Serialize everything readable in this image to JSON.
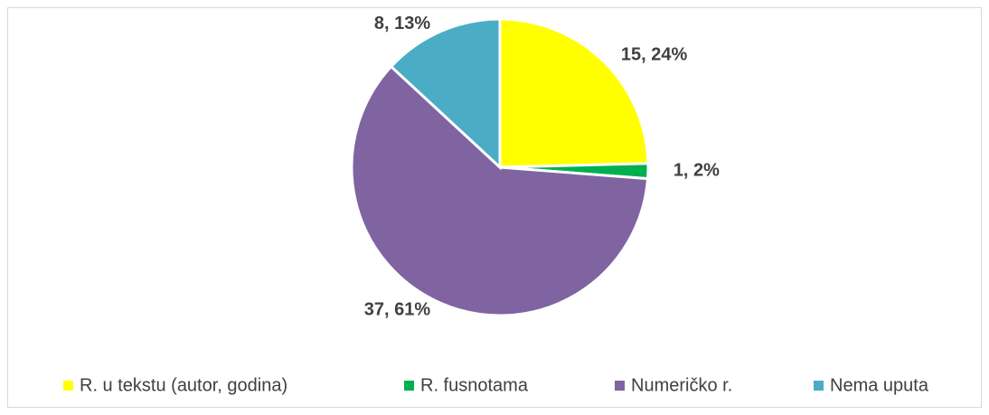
{
  "chart_data": {
    "type": "pie",
    "categories": [
      "R. u tekstu (autor, godina)",
      "R. fusnotama",
      "Numeričko r.",
      "Nema uputa"
    ],
    "values": [
      15,
      1,
      37,
      8
    ],
    "value_labels": [
      "15, 24%",
      "1, 2%",
      "37, 61%",
      "8, 13%"
    ],
    "colors": [
      "#ffff00",
      "#00b050",
      "#8064a2",
      "#4bacc6"
    ],
    "legend": "bottom"
  }
}
